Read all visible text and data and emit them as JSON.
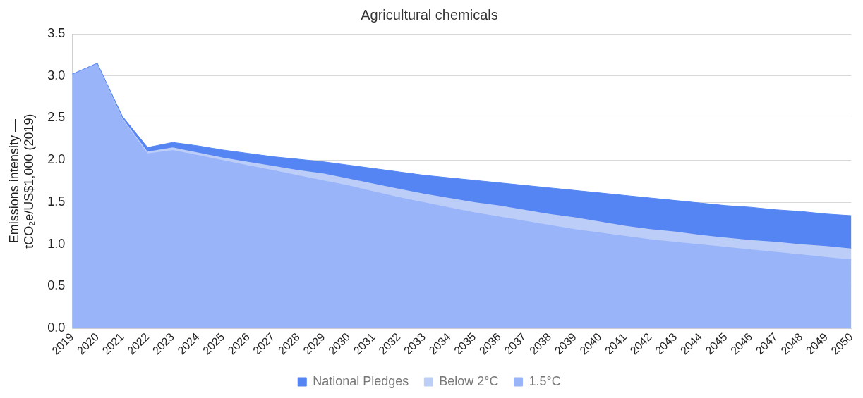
{
  "chart_data": {
    "type": "area",
    "title": "Agricultural chemicals",
    "ylabel": "Emissions intensity — tCO₂e/US$1,000 (2019)",
    "categories": [
      "2019",
      "2020",
      "2021",
      "2022",
      "2023",
      "2024",
      "2025",
      "2026",
      "2027",
      "2028",
      "2029",
      "2030",
      "2031",
      "2032",
      "2033",
      "2034",
      "2035",
      "2036",
      "2037",
      "2038",
      "2039",
      "2040",
      "2041",
      "2042",
      "2043",
      "2044",
      "2045",
      "2046",
      "2047",
      "2048",
      "2049",
      "2050"
    ],
    "series": [
      {
        "name": "National Pledges",
        "color": "#5585f2",
        "values": [
          3.02,
          3.15,
          2.52,
          2.15,
          2.21,
          2.17,
          2.12,
          2.08,
          2.04,
          2.01,
          1.98,
          1.94,
          1.9,
          1.86,
          1.82,
          1.79,
          1.76,
          1.73,
          1.7,
          1.67,
          1.64,
          1.61,
          1.58,
          1.55,
          1.52,
          1.49,
          1.46,
          1.44,
          1.41,
          1.39,
          1.36,
          1.34
        ]
      },
      {
        "name": "Below 2°C",
        "color": "#bccdf8",
        "values": [
          3.02,
          3.15,
          2.5,
          2.1,
          2.15,
          2.09,
          2.03,
          1.98,
          1.93,
          1.88,
          1.84,
          1.78,
          1.72,
          1.66,
          1.6,
          1.55,
          1.5,
          1.46,
          1.41,
          1.36,
          1.32,
          1.27,
          1.22,
          1.18,
          1.15,
          1.11,
          1.08,
          1.05,
          1.03,
          1.0,
          0.98,
          0.95
        ]
      },
      {
        "name": "1.5°C",
        "color": "#99b4f8",
        "values": [
          3.02,
          3.15,
          2.49,
          2.08,
          2.12,
          2.06,
          2.0,
          1.94,
          1.88,
          1.82,
          1.76,
          1.7,
          1.63,
          1.56,
          1.5,
          1.44,
          1.38,
          1.33,
          1.28,
          1.23,
          1.18,
          1.14,
          1.1,
          1.06,
          1.03,
          1.0,
          0.97,
          0.94,
          0.91,
          0.88,
          0.85,
          0.82
        ]
      }
    ],
    "ylim": [
      0,
      3.5
    ],
    "yticks": [
      {
        "value": 0,
        "label": "0.0"
      },
      {
        "value": 0.5,
        "label": "0.5"
      },
      {
        "value": 1,
        "label": "1.0"
      },
      {
        "value": 1.5,
        "label": "1.5"
      },
      {
        "value": 2,
        "label": "2.0"
      },
      {
        "value": 2.5,
        "label": "2.5"
      },
      {
        "value": 3,
        "label": "3.0"
      },
      {
        "value": 3.5,
        "label": "3.5"
      }
    ],
    "grid": "y",
    "legend": "bottom"
  }
}
